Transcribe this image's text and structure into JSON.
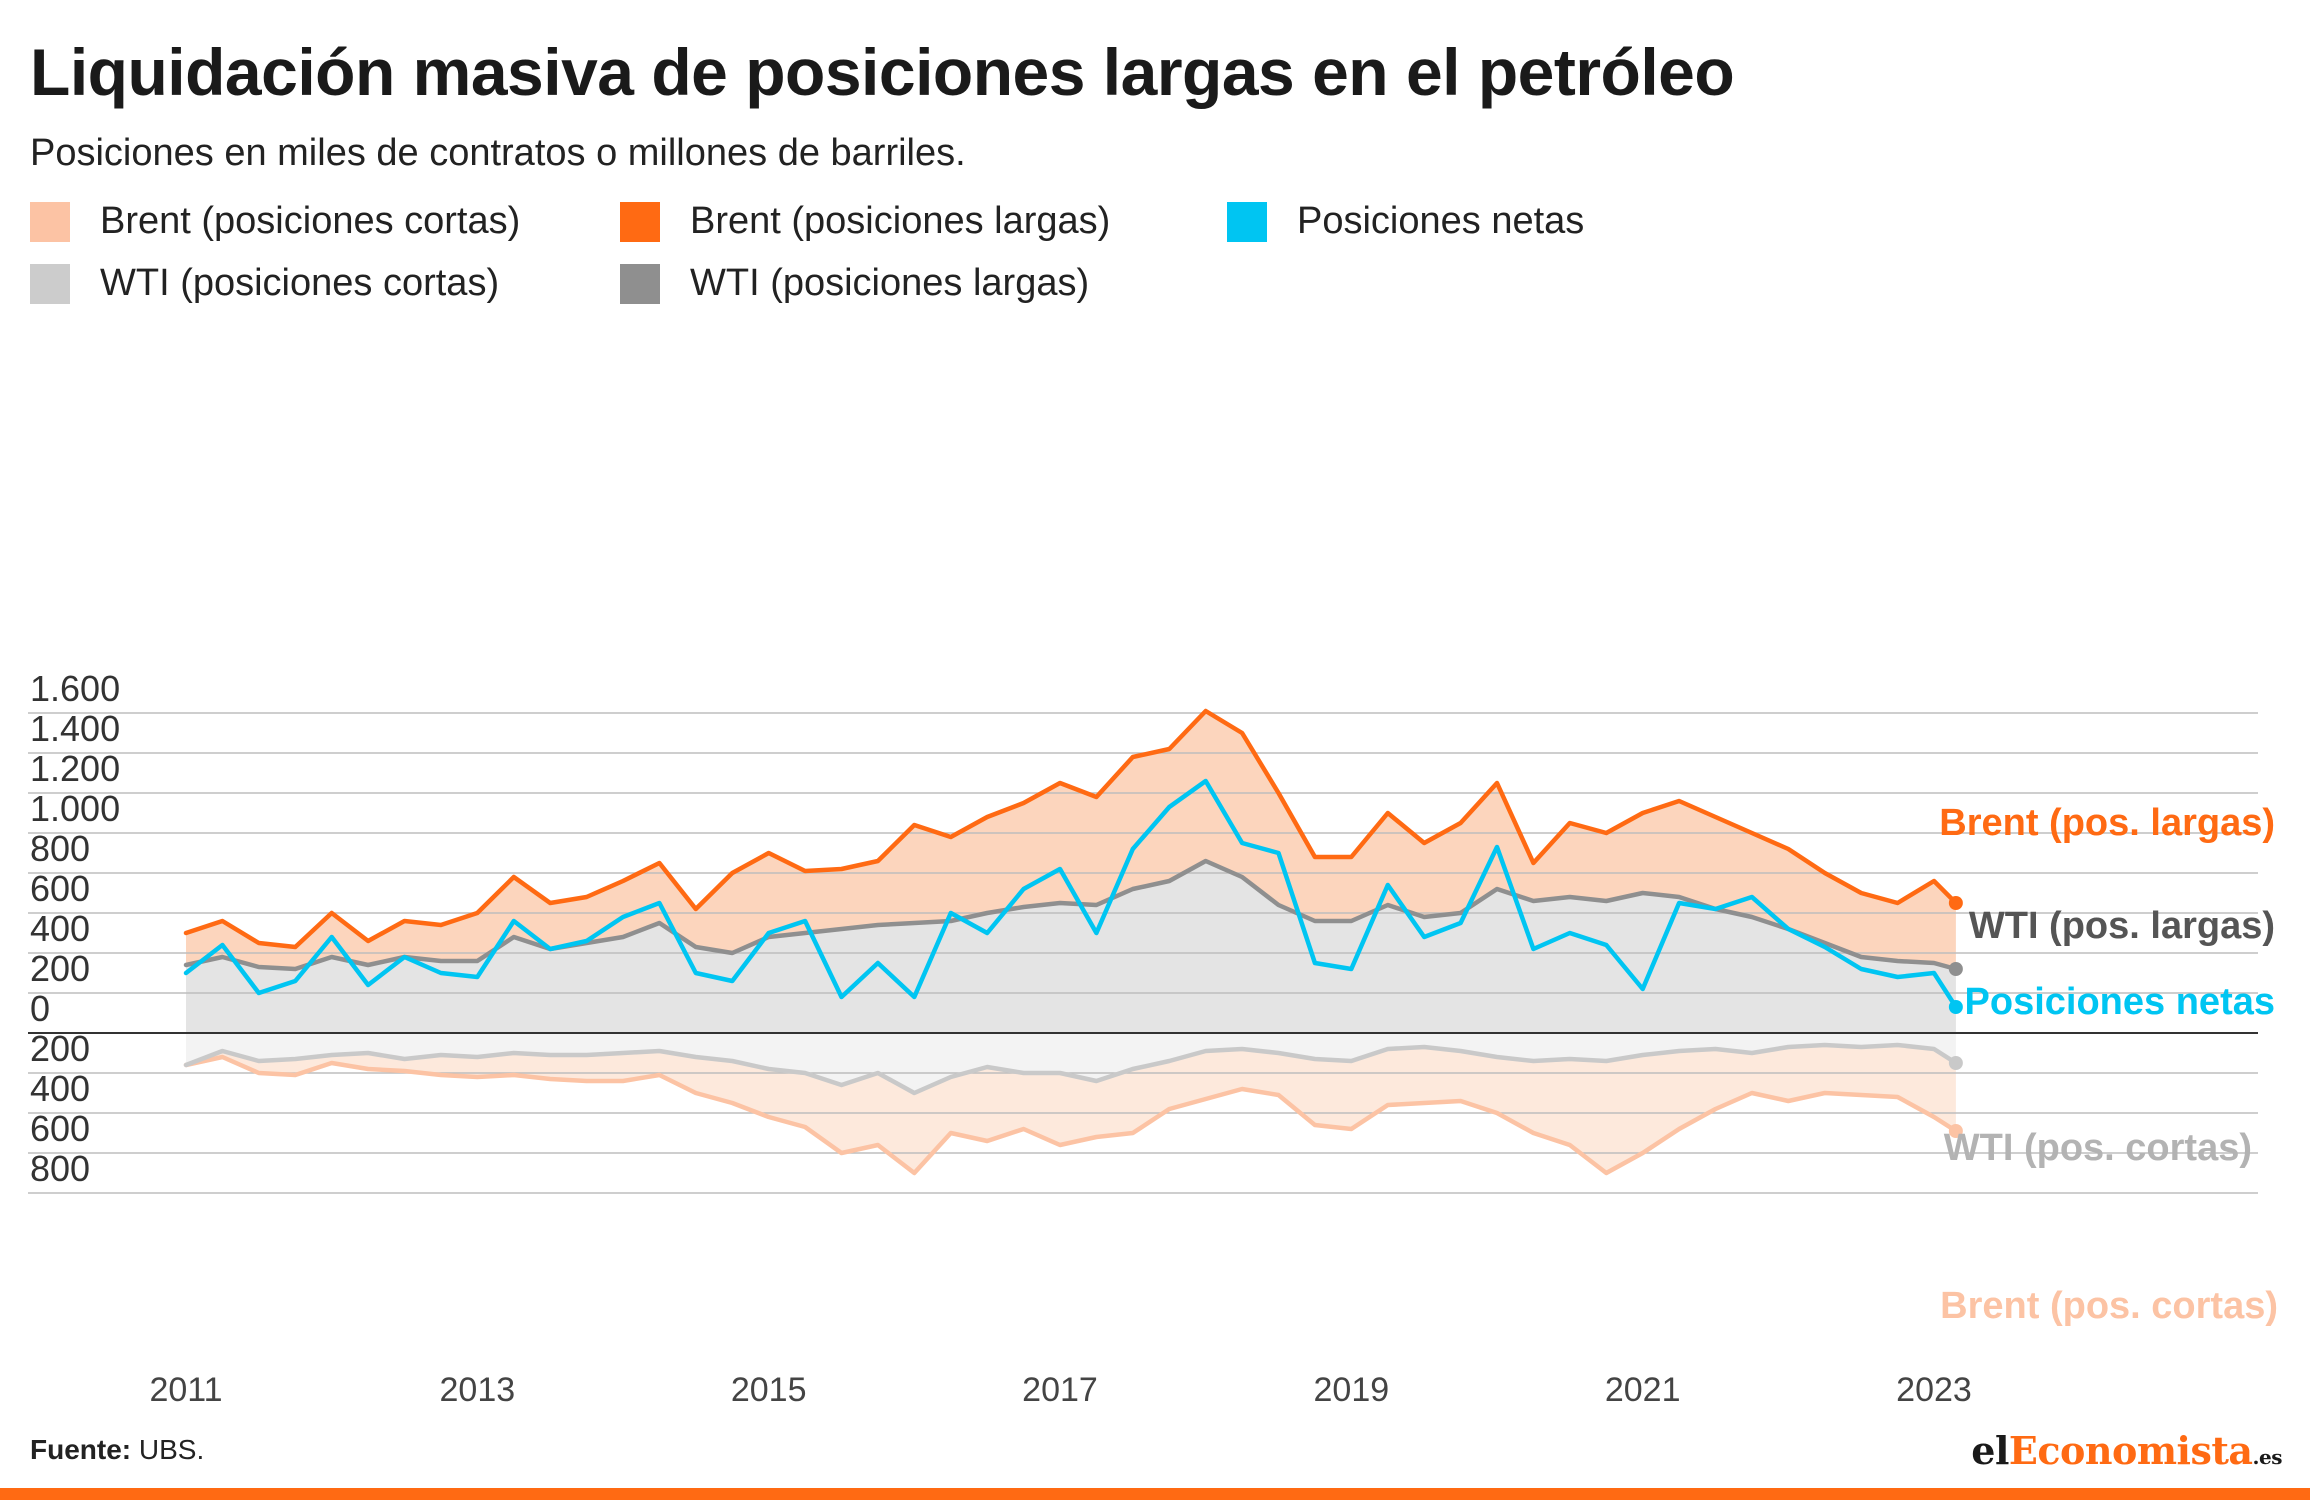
{
  "title": "Liquidación masiva de posiciones largas en el petróleo",
  "subtitle": "Posiciones en miles de contratos o millones de barriles.",
  "legend": [
    {
      "label": "Brent (posiciones cortas)",
      "color": "#fcc3a4"
    },
    {
      "label": "Brent (posiciones largas)",
      "color": "#ff6a13"
    },
    {
      "label": "Posiciones netas",
      "color": "#00c5f2"
    },
    {
      "label": "WTI (posiciones cortas)",
      "color": "#cccccc"
    },
    {
      "label": "WTI (posiciones largas)",
      "color": "#8f8f8f"
    }
  ],
  "end_labels": {
    "brent_long": "Brent (pos. largas)",
    "wti_long": "WTI (pos. largas)",
    "net": "Posiciones netas",
    "wti_short": "WTI (pos. cortas)",
    "brent_short": "Brent (pos. cortas)"
  },
  "source_label": "Fuente:",
  "source_text": "UBS.",
  "logo": {
    "part1": "el",
    "part2": "Economista",
    "part3": ".es"
  },
  "chart_data": {
    "type": "area",
    "y_tick_labels": [
      "1.600",
      "1.400",
      "1.200",
      "1.000",
      "800",
      "600",
      "400",
      "200",
      "0",
      "200",
      "400",
      "600",
      "800"
    ],
    "y_tick_values": [
      1600,
      1400,
      1200,
      1000,
      800,
      600,
      400,
      200,
      0,
      -200,
      -400,
      -600,
      -800
    ],
    "x_tick_labels": [
      "2011",
      "2013",
      "2015",
      "2017",
      "2019",
      "2021",
      "2023"
    ],
    "x_tick_values": [
      2011,
      2013,
      2015,
      2017,
      2019,
      2021,
      2023
    ],
    "ylim": [
      -800,
      1600
    ],
    "xlim": [
      2011,
      2023.25
    ],
    "grid": true,
    "series": [
      {
        "name": "Brent (posiciones largas)",
        "key": "brent_long",
        "color": "#ff6a13",
        "x": [
          2011.0,
          2011.25,
          2011.5,
          2011.75,
          2012.0,
          2012.25,
          2012.5,
          2012.75,
          2013.0,
          2013.25,
          2013.5,
          2013.75,
          2014.0,
          2014.25,
          2014.5,
          2014.75,
          2015.0,
          2015.25,
          2015.5,
          2015.75,
          2016.0,
          2016.25,
          2016.5,
          2016.75,
          2017.0,
          2017.25,
          2017.5,
          2017.75,
          2018.0,
          2018.25,
          2018.5,
          2018.75,
          2019.0,
          2019.25,
          2019.5,
          2019.75,
          2020.0,
          2020.25,
          2020.5,
          2020.75,
          2021.0,
          2021.25,
          2021.5,
          2021.75,
          2022.0,
          2022.25,
          2022.5,
          2022.75,
          2023.0,
          2023.15
        ],
        "values": [
          500,
          560,
          450,
          430,
          600,
          460,
          560,
          540,
          600,
          780,
          650,
          680,
          760,
          850,
          620,
          800,
          900,
          810,
          820,
          860,
          1040,
          980,
          1080,
          1150,
          1250,
          1180,
          1380,
          1420,
          1610,
          1500,
          1200,
          880,
          880,
          1100,
          950,
          1050,
          1250,
          850,
          1050,
          1000,
          1100,
          1160,
          1080,
          1000,
          920,
          800,
          700,
          650,
          760,
          650
        ]
      },
      {
        "name": "WTI (posiciones largas)",
        "key": "wti_long",
        "color": "#8f8f8f",
        "x": [
          2011.0,
          2011.25,
          2011.5,
          2011.75,
          2012.0,
          2012.25,
          2012.5,
          2012.75,
          2013.0,
          2013.25,
          2013.5,
          2013.75,
          2014.0,
          2014.25,
          2014.5,
          2014.75,
          2015.0,
          2015.25,
          2015.5,
          2015.75,
          2016.0,
          2016.25,
          2016.5,
          2016.75,
          2017.0,
          2017.25,
          2017.5,
          2017.75,
          2018.0,
          2018.25,
          2018.5,
          2018.75,
          2019.0,
          2019.25,
          2019.5,
          2019.75,
          2020.0,
          2020.25,
          2020.5,
          2020.75,
          2021.0,
          2021.25,
          2021.5,
          2021.75,
          2022.0,
          2022.25,
          2022.5,
          2022.75,
          2023.0,
          2023.15
        ],
        "values": [
          340,
          380,
          330,
          320,
          380,
          340,
          380,
          360,
          360,
          480,
          420,
          450,
          480,
          550,
          430,
          400,
          480,
          500,
          520,
          540,
          550,
          560,
          600,
          630,
          650,
          640,
          720,
          760,
          860,
          780,
          640,
          560,
          560,
          640,
          580,
          600,
          720,
          660,
          680,
          660,
          700,
          680,
          620,
          580,
          520,
          450,
          380,
          360,
          350,
          320
        ]
      },
      {
        "name": "Posiciones netas",
        "key": "net",
        "color": "#00c5f2",
        "x": [
          2011.0,
          2011.25,
          2011.5,
          2011.75,
          2012.0,
          2012.25,
          2012.5,
          2012.75,
          2013.0,
          2013.25,
          2013.5,
          2013.75,
          2014.0,
          2014.25,
          2014.5,
          2014.75,
          2015.0,
          2015.25,
          2015.5,
          2015.75,
          2016.0,
          2016.25,
          2016.5,
          2016.75,
          2017.0,
          2017.25,
          2017.5,
          2017.75,
          2018.0,
          2018.25,
          2018.5,
          2018.75,
          2019.0,
          2019.25,
          2019.5,
          2019.75,
          2020.0,
          2020.25,
          2020.5,
          2020.75,
          2021.0,
          2021.25,
          2021.5,
          2021.75,
          2022.0,
          2022.25,
          2022.5,
          2022.75,
          2023.0,
          2023.15
        ],
        "values": [
          300,
          440,
          200,
          260,
          480,
          240,
          380,
          300,
          280,
          560,
          420,
          460,
          580,
          650,
          300,
          260,
          500,
          560,
          180,
          350,
          180,
          600,
          500,
          720,
          820,
          500,
          920,
          1130,
          1260,
          950,
          900,
          350,
          320,
          740,
          480,
          550,
          930,
          420,
          500,
          440,
          220,
          650,
          620,
          680,
          520,
          430,
          320,
          280,
          300,
          130
        ]
      },
      {
        "name": "WTI (posiciones cortas)",
        "key": "wti_short",
        "color": "#c9c9c9",
        "x": [
          2011.0,
          2011.25,
          2011.5,
          2011.75,
          2012.0,
          2012.25,
          2012.5,
          2012.75,
          2013.0,
          2013.25,
          2013.5,
          2013.75,
          2014.0,
          2014.25,
          2014.5,
          2014.75,
          2015.0,
          2015.25,
          2015.5,
          2015.75,
          2016.0,
          2016.25,
          2016.5,
          2016.75,
          2017.0,
          2017.25,
          2017.5,
          2017.75,
          2018.0,
          2018.25,
          2018.5,
          2018.75,
          2019.0,
          2019.25,
          2019.5,
          2019.75,
          2020.0,
          2020.25,
          2020.5,
          2020.75,
          2021.0,
          2021.25,
          2021.5,
          2021.75,
          2022.0,
          2022.25,
          2022.5,
          2022.75,
          2023.0,
          2023.15
        ],
        "values": [
          -160,
          -90,
          -140,
          -130,
          -110,
          -100,
          -130,
          -110,
          -120,
          -100,
          -110,
          -110,
          -100,
          -90,
          -120,
          -140,
          -180,
          -200,
          -260,
          -200,
          -300,
          -220,
          -170,
          -200,
          -200,
          -240,
          -180,
          -140,
          -90,
          -80,
          -100,
          -130,
          -140,
          -80,
          -70,
          -90,
          -120,
          -140,
          -130,
          -140,
          -110,
          -90,
          -80,
          -100,
          -70,
          -60,
          -70,
          -60,
          -80,
          -150
        ]
      },
      {
        "name": "Brent (posiciones cortas)",
        "key": "brent_short",
        "color": "#fcc3a4",
        "x": [
          2011.0,
          2011.25,
          2011.5,
          2011.75,
          2012.0,
          2012.25,
          2012.5,
          2012.75,
          2013.0,
          2013.25,
          2013.5,
          2013.75,
          2014.0,
          2014.25,
          2014.5,
          2014.75,
          2015.0,
          2015.25,
          2015.5,
          2015.75,
          2016.0,
          2016.25,
          2016.5,
          2016.75,
          2017.0,
          2017.25,
          2017.5,
          2017.75,
          2018.0,
          2018.25,
          2018.5,
          2018.75,
          2019.0,
          2019.25,
          2019.5,
          2019.75,
          2020.0,
          2020.25,
          2020.5,
          2020.75,
          2021.0,
          2021.25,
          2021.5,
          2021.75,
          2022.0,
          2022.25,
          2022.5,
          2022.75,
          2023.0,
          2023.15
        ],
        "values": [
          -160,
          -120,
          -200,
          -210,
          -150,
          -180,
          -190,
          -210,
          -220,
          -210,
          -230,
          -240,
          -240,
          -210,
          -300,
          -350,
          -420,
          -470,
          -600,
          -560,
          -700,
          -500,
          -540,
          -480,
          -560,
          -520,
          -500,
          -380,
          -330,
          -280,
          -310,
          -460,
          -480,
          -360,
          -350,
          -340,
          -400,
          -500,
          -560,
          -700,
          -600,
          -480,
          -380,
          -300,
          -340,
          -300,
          -310,
          -320,
          -420,
          -490
        ]
      }
    ]
  }
}
